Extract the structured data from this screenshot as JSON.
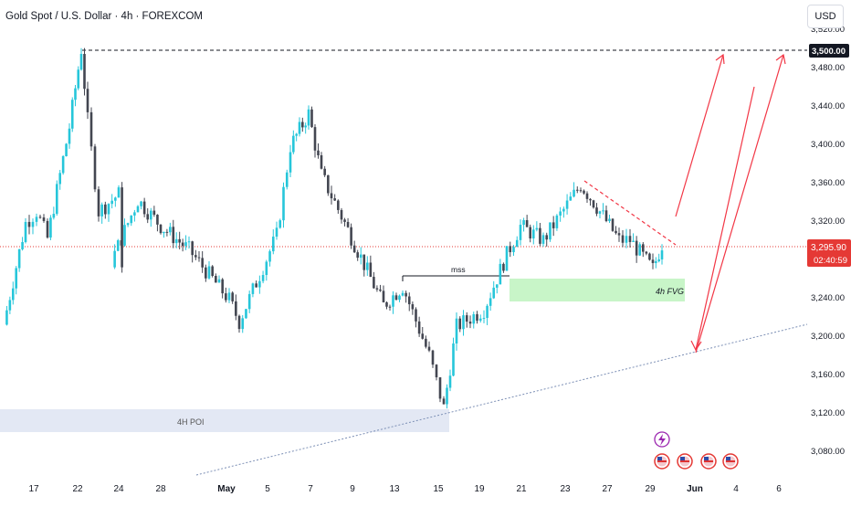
{
  "header": {
    "symbol_title": "Gold Spot / U.S. Dollar · 4h · FOREXCOM",
    "currency": "USD"
  },
  "price_axis": {
    "ticks": [
      "3,520.00",
      "3,480.00",
      "3,440.00",
      "3,400.00",
      "3,360.00",
      "3,320.00",
      "3,280.00",
      "3,240.00",
      "3,200.00",
      "3,160.00",
      "3,120.00",
      "3,080.00"
    ],
    "current_price": "3,295.90",
    "countdown": "02:40:59",
    "target_label": "3,500.00"
  },
  "time_axis": {
    "labels": [
      "17",
      "22",
      "24",
      "28",
      "May",
      "5",
      "7",
      "9",
      "13",
      "15",
      "19",
      "21",
      "23",
      "27",
      "29",
      "Jun",
      "4",
      "6"
    ]
  },
  "annotations": {
    "mss_label": "mss",
    "fvg_label": "4h FVG",
    "poi_label": "4H POI"
  },
  "colors": {
    "bull": "#26c6da",
    "bear": "#434651",
    "projection": "#f23645",
    "fvg_zone": "#c8f5c8",
    "poi_zone": "#e3e8f4",
    "trendline": "#7c8fb5",
    "price_line": "#e53935"
  },
  "icons": {
    "event_icon": "lightning-icon",
    "flag_icon": "us-flag-icon"
  },
  "chart_data": {
    "type": "candlestick",
    "instrument": "Gold Spot / U.S. Dollar",
    "timeframe": "4h",
    "source": "FOREXCOM",
    "ylim": [
      3060,
      3530
    ],
    "close_path": [
      {
        "t": "Apr 15",
        "price": 3212
      },
      {
        "t": "Apr 16",
        "price": 3318
      },
      {
        "t": "Apr 17",
        "price": 3330
      },
      {
        "t": "Apr 18",
        "price": 3302
      },
      {
        "t": "Apr 21",
        "price": 3418
      },
      {
        "t": "Apr 22",
        "price": 3499
      },
      {
        "t": "Apr 22 late",
        "price": 3425
      },
      {
        "t": "Apr 23",
        "price": 3330
      },
      {
        "t": "Apr 24",
        "price": 3348
      },
      {
        "t": "Apr 25",
        "price": 3278
      },
      {
        "t": "Apr 28",
        "price": 3342
      },
      {
        "t": "Apr 29",
        "price": 3315
      },
      {
        "t": "Apr 30",
        "price": 3290
      },
      {
        "t": "May 1",
        "price": 3238
      },
      {
        "t": "May 2",
        "price": 3215
      },
      {
        "t": "May 5",
        "price": 3305
      },
      {
        "t": "May 6",
        "price": 3398
      },
      {
        "t": "May 7",
        "price": 3432
      },
      {
        "t": "May 8",
        "price": 3368
      },
      {
        "t": "May 9",
        "price": 3325
      },
      {
        "t": "May 12",
        "price": 3232
      },
      {
        "t": "May 13",
        "price": 3252
      },
      {
        "t": "May 14",
        "price": 3180
      },
      {
        "t": "May 15",
        "price": 3125
      },
      {
        "t": "May 16",
        "price": 3210
      },
      {
        "t": "May 19",
        "price": 3228
      },
      {
        "t": "May 20",
        "price": 3285
      },
      {
        "t": "May 21",
        "price": 3315
      },
      {
        "t": "May 22",
        "price": 3300
      },
      {
        "t": "May 23",
        "price": 3358
      },
      {
        "t": "May 26",
        "price": 3340
      },
      {
        "t": "May 27",
        "price": 3300
      },
      {
        "t": "May 28",
        "price": 3300
      },
      {
        "t": "May 29",
        "price": 3270
      },
      {
        "t": "May 30",
        "price": 3296
      }
    ],
    "last_price": 3295.9,
    "target_price": 3500.0,
    "zones": [
      {
        "name": "4h FVG",
        "from": 3238,
        "to": 3262
      },
      {
        "name": "4H POI",
        "from": 3098,
        "to": 3122
      }
    ],
    "projection": [
      {
        "from": 3320,
        "to": 3500
      },
      {
        "from": 3500,
        "to": 3180
      },
      {
        "from": 3180,
        "to": 3500
      }
    ]
  }
}
